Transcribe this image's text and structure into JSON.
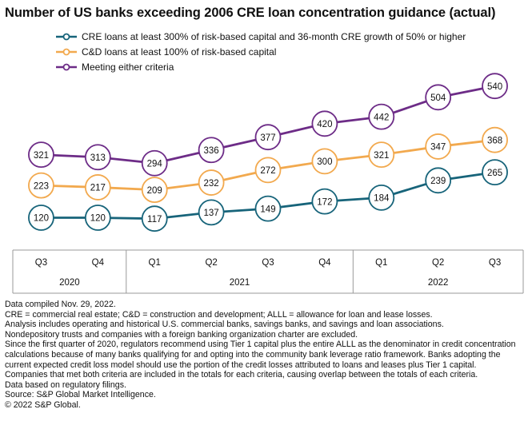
{
  "page": {
    "title": "Number of US banks exceeding 2006 CRE loan concentration guidance (actual)"
  },
  "chart_data": {
    "type": "line",
    "title": "Number of US banks exceeding 2006 CRE loan concentration guidance (actual)",
    "x": [
      "Q3",
      "Q4",
      "Q1",
      "Q2",
      "Q3",
      "Q4",
      "Q1",
      "Q2",
      "Q3"
    ],
    "year_groups": [
      {
        "label": "2020",
        "count": 2
      },
      {
        "label": "2021",
        "count": 4
      },
      {
        "label": "2022",
        "count": 3
      }
    ],
    "series": [
      {
        "name": "CRE loans at least 300% of risk-based capital and 36-month CRE growth of 50% or higher",
        "color": "#17647a",
        "values": [
          120,
          120,
          117,
          137,
          149,
          172,
          184,
          239,
          265
        ]
      },
      {
        "name": "C&D loans at least 100% of risk-based capital",
        "color": "#f2a94e",
        "values": [
          223,
          217,
          209,
          232,
          272,
          300,
          321,
          347,
          368
        ]
      },
      {
        "name": "Meeting either criteria",
        "color": "#6d2c87",
        "values": [
          321,
          313,
          294,
          336,
          377,
          420,
          442,
          504,
          540
        ]
      }
    ],
    "ylim": [
      50,
      580
    ],
    "grid": false,
    "legend": "top-left",
    "data_labels": true
  },
  "notes": [
    "Data compiled Nov. 29, 2022.",
    "CRE = commercial real estate; C&D = construction and development; ALLL = allowance for loan and lease losses.",
    "Analysis includes operating and historical U.S. commercial banks, savings banks, and savings and loan associations.",
    "Nondepository trusts and companies with a foreign banking organization charter are excluded.",
    "Since the first quarter of 2020, regulators recommend using Tier 1 capital plus the entire ALLL as the denominator in credit concentration calculations because of many banks qualifying for and opting into the community bank leverage ratio framework. Banks adopting the current expected credit loss model should use the portion of the credit losses attributed to loans and leases plus Tier 1 capital.",
    "Companies that met both criteria are included in the totals for each criteria, causing overlap between the totals of each criteria.",
    "Data based on regulatory filings.",
    "Source: S&P Global Market Intelligence.",
    "© 2022 S&P Global."
  ]
}
